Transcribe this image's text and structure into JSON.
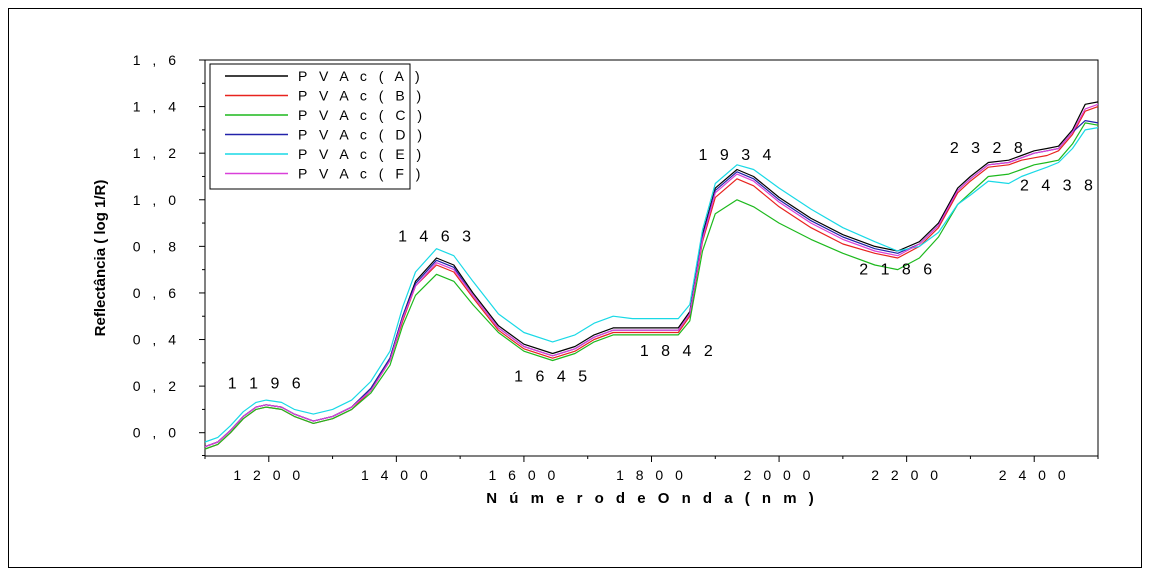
{
  "chart_data": {
    "type": "line",
    "xlabel": "N ú m e r o   d e   O n d a  ( n m )",
    "ylabel": "Reflectância ( log 1/R)",
    "xlim": [
      1100,
      2500
    ],
    "ylim": [
      -0.1,
      1.6
    ],
    "xticks": [
      1200,
      1400,
      1600,
      1800,
      2000,
      2200,
      2400
    ],
    "xtick_labels": [
      "1 2 0 0",
      "1 4 0 0",
      "1 6 0 0",
      "1 8 0 0",
      "2 0 0 0",
      "2 2 0 0",
      "2 4 0 0"
    ],
    "yticks": [
      0.0,
      0.2,
      0.4,
      0.6,
      0.8,
      1.0,
      1.2,
      1.4,
      1.6
    ],
    "ytick_labels": [
      "0 , 0",
      "0 , 2",
      "0 , 4",
      "0 , 6",
      "0 , 8",
      "1 , 0",
      "1 , 2",
      "1 , 4",
      "1 , 6"
    ],
    "legend_position": "top-left",
    "annotations": [
      {
        "text": "1 1 9 6",
        "x": 1196,
        "y": 0.19
      },
      {
        "text": "1 4 6 3",
        "x": 1463,
        "y": 0.82
      },
      {
        "text": "1 6 4 5",
        "x": 1645,
        "y": 0.22
      },
      {
        "text": "1 8 4 2",
        "x": 1842,
        "y": 0.33
      },
      {
        "text": "1 9 3 4",
        "x": 1934,
        "y": 1.17
      },
      {
        "text": "2 1 8 6",
        "x": 2186,
        "y": 0.68
      },
      {
        "text": "2 3 2 8",
        "x": 2328,
        "y": 1.2
      },
      {
        "text": "2 4 3 8",
        "x": 2438,
        "y": 1.04
      }
    ],
    "x": [
      1100,
      1120,
      1140,
      1160,
      1180,
      1196,
      1220,
      1240,
      1270,
      1300,
      1330,
      1360,
      1390,
      1410,
      1430,
      1463,
      1490,
      1520,
      1560,
      1600,
      1645,
      1680,
      1710,
      1740,
      1770,
      1800,
      1842,
      1860,
      1880,
      1900,
      1934,
      1960,
      2000,
      2050,
      2100,
      2150,
      2186,
      2220,
      2250,
      2280,
      2300,
      2328,
      2360,
      2380,
      2400,
      2420,
      2438,
      2460,
      2480,
      2500
    ],
    "series": [
      {
        "name": "P V A c  ( A )",
        "color": "#000000",
        "values": [
          -0.06,
          -0.04,
          0.01,
          0.07,
          0.11,
          0.12,
          0.11,
          0.08,
          0.05,
          0.07,
          0.11,
          0.19,
          0.32,
          0.5,
          0.65,
          0.75,
          0.72,
          0.6,
          0.46,
          0.38,
          0.34,
          0.37,
          0.42,
          0.45,
          0.45,
          0.45,
          0.45,
          0.52,
          0.85,
          1.05,
          1.13,
          1.1,
          1.01,
          0.92,
          0.85,
          0.8,
          0.78,
          0.82,
          0.9,
          1.05,
          1.1,
          1.16,
          1.17,
          1.19,
          1.21,
          1.22,
          1.23,
          1.3,
          1.41,
          1.42
        ]
      },
      {
        "name": "P V A c  ( B )",
        "color": "#e8231e",
        "values": [
          -0.07,
          -0.05,
          0.0,
          0.06,
          0.1,
          0.11,
          0.1,
          0.07,
          0.04,
          0.06,
          0.1,
          0.18,
          0.31,
          0.48,
          0.63,
          0.72,
          0.69,
          0.58,
          0.44,
          0.36,
          0.32,
          0.35,
          0.4,
          0.43,
          0.43,
          0.43,
          0.43,
          0.5,
          0.82,
          1.01,
          1.09,
          1.06,
          0.97,
          0.88,
          0.81,
          0.77,
          0.75,
          0.8,
          0.88,
          1.03,
          1.08,
          1.14,
          1.15,
          1.17,
          1.18,
          1.19,
          1.21,
          1.28,
          1.38,
          1.4
        ]
      },
      {
        "name": "P V A c  ( C )",
        "color": "#1db91d",
        "values": [
          -0.07,
          -0.05,
          0.0,
          0.06,
          0.1,
          0.11,
          0.1,
          0.07,
          0.04,
          0.06,
          0.1,
          0.17,
          0.29,
          0.46,
          0.59,
          0.68,
          0.65,
          0.55,
          0.43,
          0.35,
          0.31,
          0.34,
          0.39,
          0.42,
          0.42,
          0.42,
          0.42,
          0.48,
          0.78,
          0.94,
          1.0,
          0.97,
          0.9,
          0.83,
          0.77,
          0.72,
          0.7,
          0.75,
          0.84,
          0.98,
          1.03,
          1.1,
          1.11,
          1.13,
          1.15,
          1.16,
          1.17,
          1.24,
          1.33,
          1.32
        ]
      },
      {
        "name": "P V A c  ( D )",
        "color": "#2222aa",
        "values": [
          -0.06,
          -0.04,
          0.01,
          0.07,
          0.11,
          0.12,
          0.11,
          0.08,
          0.05,
          0.07,
          0.11,
          0.19,
          0.32,
          0.5,
          0.64,
          0.74,
          0.71,
          0.59,
          0.45,
          0.37,
          0.33,
          0.36,
          0.41,
          0.44,
          0.44,
          0.44,
          0.44,
          0.51,
          0.84,
          1.04,
          1.12,
          1.09,
          1.0,
          0.91,
          0.84,
          0.79,
          0.77,
          0.81,
          0.89,
          1.04,
          1.09,
          1.15,
          1.16,
          1.18,
          1.2,
          1.21,
          1.22,
          1.29,
          1.34,
          1.33
        ]
      },
      {
        "name": "P V A c  ( E )",
        "color": "#19d9e6",
        "values": [
          -0.04,
          -0.02,
          0.03,
          0.09,
          0.13,
          0.14,
          0.13,
          0.1,
          0.08,
          0.1,
          0.14,
          0.22,
          0.35,
          0.54,
          0.69,
          0.79,
          0.76,
          0.65,
          0.51,
          0.43,
          0.39,
          0.42,
          0.47,
          0.5,
          0.49,
          0.49,
          0.49,
          0.55,
          0.87,
          1.07,
          1.15,
          1.13,
          1.05,
          0.96,
          0.88,
          0.82,
          0.78,
          0.8,
          0.86,
          0.98,
          1.02,
          1.08,
          1.07,
          1.1,
          1.12,
          1.14,
          1.16,
          1.22,
          1.3,
          1.31
        ]
      },
      {
        "name": "P V A c  ( F )",
        "color": "#d940d9",
        "values": [
          -0.06,
          -0.04,
          0.01,
          0.07,
          0.11,
          0.12,
          0.11,
          0.08,
          0.05,
          0.07,
          0.11,
          0.18,
          0.31,
          0.49,
          0.63,
          0.73,
          0.7,
          0.59,
          0.45,
          0.37,
          0.33,
          0.36,
          0.41,
          0.44,
          0.44,
          0.44,
          0.44,
          0.51,
          0.83,
          1.03,
          1.11,
          1.08,
          0.99,
          0.9,
          0.83,
          0.78,
          0.76,
          0.81,
          0.89,
          1.04,
          1.09,
          1.15,
          1.16,
          1.18,
          1.2,
          1.21,
          1.22,
          1.29,
          1.39,
          1.41
        ]
      }
    ]
  }
}
